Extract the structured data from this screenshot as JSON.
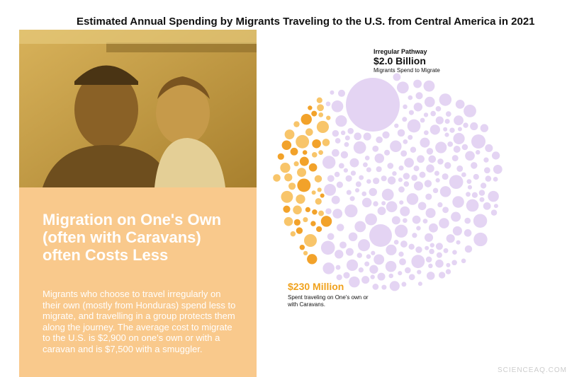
{
  "title": "Estimated Annual Spending by Migrants Traveling to the U.S. from Central America in 2021",
  "panel": {
    "heading": "Migration on One's Own (often with Caravans) often Costs Less",
    "body": "Migrants who choose to travel irregularly on their own (mostly from Honduras) spend less to migrate, and travelling in a group protects them along the journey. The average cost to migrate to the U.S. is $2,900 on one's own or with a caravan and is $7,500 with a smuggler."
  },
  "irregular": {
    "label": "Irregular Pathway",
    "amount": "$2.0 Billion",
    "caption": "Migrants Spend to Migrate"
  },
  "own": {
    "amount": "$230 Million",
    "caption": "Spent traveling on One's own or with Caravans."
  },
  "watermark": "SCIENCEAQ.COM"
}
